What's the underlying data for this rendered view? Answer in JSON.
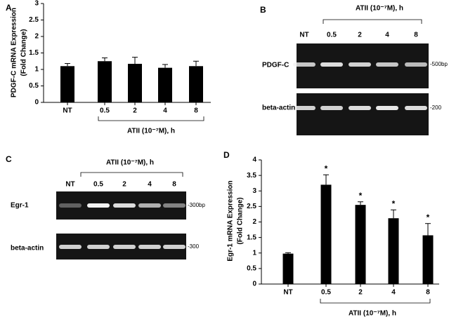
{
  "chart_data": [
    {
      "type": "bar",
      "panel": "A",
      "ylabel": [
        "PDGF-C mRNA Expression",
        "(Fold Change)"
      ],
      "categories": [
        "NT",
        "0.5",
        "2",
        "4",
        "8"
      ],
      "values": [
        1.1,
        1.25,
        1.17,
        1.05,
        1.1
      ],
      "errors": [
        0.08,
        0.1,
        0.2,
        0.1,
        0.15
      ],
      "color": "#000000",
      "ylim": [
        0,
        3
      ],
      "yticks": [
        0,
        0.5,
        1,
        1.5,
        2,
        2.5,
        3
      ],
      "xlabel": "ATII (10⁻⁷M), h"
    },
    {
      "type": "bar",
      "panel": "D",
      "ylabel": [
        "Egr-1 mRNA Expression",
        "(Fold Change)"
      ],
      "categories": [
        "NT",
        "0.5",
        "2",
        "4",
        "8"
      ],
      "values": [
        0.98,
        3.2,
        2.55,
        2.12,
        1.57
      ],
      "errors": [
        0.03,
        0.32,
        0.1,
        0.27,
        0.38
      ],
      "significance": [
        null,
        "*",
        "*",
        "*",
        "*"
      ],
      "color": "#000000",
      "ylim": [
        0,
        4
      ],
      "yticks": [
        0,
        0.5,
        1,
        1.5,
        2,
        2.5,
        3,
        3.5,
        4
      ],
      "xlabel": "ATII (10⁻⁷M), h"
    }
  ],
  "gels": [
    {
      "panel": "B",
      "header": "ATII (10⁻⁷M), h",
      "lanes": [
        "NT",
        "0.5",
        "2",
        "4",
        "8"
      ],
      "rows": [
        {
          "label": "PDGF-C",
          "size": "-500bp"
        },
        {
          "label": "beta-actin",
          "size": "-200"
        }
      ]
    },
    {
      "panel": "C",
      "header": "ATII (10⁻⁷M), h",
      "lanes": [
        "NT",
        "0.5",
        "2",
        "4",
        "8"
      ],
      "rows": [
        {
          "label": "Egr-1",
          "size": "-300bp"
        },
        {
          "label": "beta-actin",
          "size": "-300"
        }
      ]
    }
  ]
}
